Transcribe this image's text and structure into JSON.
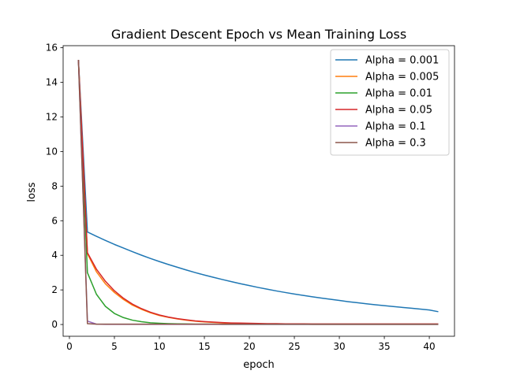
{
  "chart_data": {
    "type": "line",
    "title": "Gradient Descent Epoch vs Mean Training Loss",
    "xlabel": "epoch",
    "ylabel": "loss",
    "xlim": [
      -0.7,
      42.8
    ],
    "ylim": [
      -0.68,
      16.12
    ],
    "xticks": [
      {
        "value": 0,
        "label": "0"
      },
      {
        "value": 5,
        "label": "5"
      },
      {
        "value": 10,
        "label": "10"
      },
      {
        "value": 15,
        "label": "15"
      },
      {
        "value": 20,
        "label": "20"
      },
      {
        "value": 25,
        "label": "25"
      },
      {
        "value": 30,
        "label": "30"
      },
      {
        "value": 35,
        "label": "35"
      },
      {
        "value": 40,
        "label": "40"
      }
    ],
    "yticks": [
      {
        "value": 0,
        "label": "0"
      },
      {
        "value": 2,
        "label": "2"
      },
      {
        "value": 4,
        "label": "4"
      },
      {
        "value": 6,
        "label": "6"
      },
      {
        "value": 8,
        "label": "8"
      },
      {
        "value": 10,
        "label": "10"
      },
      {
        "value": 12,
        "label": "12"
      },
      {
        "value": 14,
        "label": "14"
      },
      {
        "value": 16,
        "label": "16"
      }
    ],
    "grid": false,
    "legend_position": "top-right",
    "x": [
      1,
      2,
      3,
      4,
      5,
      6,
      7,
      8,
      9,
      10,
      11,
      12,
      13,
      14,
      15,
      16,
      17,
      18,
      19,
      20,
      21,
      22,
      23,
      24,
      25,
      26,
      27,
      28,
      29,
      30,
      31,
      32,
      33,
      34,
      35,
      36,
      37,
      38,
      39,
      40,
      41
    ],
    "series": [
      {
        "name": "Alpha = 0.001",
        "color": "#1f77b4",
        "values": [
          15.3,
          5.35,
          5.1,
          4.86,
          4.63,
          4.42,
          4.21,
          4.01,
          3.82,
          3.64,
          3.47,
          3.31,
          3.15,
          3.0,
          2.86,
          2.73,
          2.6,
          2.48,
          2.36,
          2.25,
          2.14,
          2.04,
          1.94,
          1.85,
          1.76,
          1.68,
          1.6,
          1.53,
          1.46,
          1.39,
          1.32,
          1.26,
          1.2,
          1.14,
          1.09,
          1.04,
          0.99,
          0.94,
          0.89,
          0.84,
          0.74
        ]
      },
      {
        "name": "Alpha = 0.005",
        "color": "#ff7f0e",
        "values": [
          15.3,
          4.1,
          3.05,
          2.35,
          1.85,
          1.45,
          1.12,
          0.88,
          0.68,
          0.52,
          0.41,
          0.32,
          0.25,
          0.19,
          0.15,
          0.12,
          0.09,
          0.07,
          0.06,
          0.05,
          0.04,
          0.03,
          0.03,
          0.02,
          0.02,
          0.02,
          0.01,
          0.01,
          0.01,
          0.01,
          0.01,
          0.01,
          0.01,
          0.01,
          0.01,
          0.01,
          0.01,
          0.01,
          0.01,
          0.01,
          0.01
        ]
      },
      {
        "name": "Alpha = 0.01",
        "color": "#2ca02c",
        "values": [
          15.3,
          3.0,
          1.75,
          1.05,
          0.64,
          0.4,
          0.25,
          0.16,
          0.1,
          0.07,
          0.05,
          0.04,
          0.03,
          0.02,
          0.02,
          0.02,
          0.01,
          0.01,
          0.01,
          0.01,
          0.01,
          0.01,
          0.01,
          0.01,
          0.01,
          0.01,
          0.01,
          0.01,
          0.01,
          0.01,
          0.01,
          0.01,
          0.01,
          0.01,
          0.01,
          0.01,
          0.01,
          0.01,
          0.01,
          0.01,
          0.01
        ]
      },
      {
        "name": "Alpha = 0.05",
        "color": "#d62728",
        "values": [
          15.3,
          4.15,
          3.2,
          2.5,
          1.95,
          1.52,
          1.18,
          0.92,
          0.71,
          0.55,
          0.43,
          0.34,
          0.27,
          0.21,
          0.17,
          0.14,
          0.11,
          0.09,
          0.08,
          0.07,
          0.06,
          0.05,
          0.05,
          0.04,
          0.04,
          0.04,
          0.03,
          0.03,
          0.03,
          0.03,
          0.03,
          0.03,
          0.03,
          0.03,
          0.03,
          0.03,
          0.03,
          0.03,
          0.03,
          0.03,
          0.03
        ]
      },
      {
        "name": "Alpha = 0.1",
        "color": "#9467bd",
        "values": [
          15.3,
          0.2,
          0.02,
          0.01,
          0.01,
          0.01,
          0.01,
          0.01,
          0.01,
          0.01,
          0.01,
          0.01,
          0.01,
          0.01,
          0.01,
          0.01,
          0.01,
          0.01,
          0.01,
          0.01,
          0.01,
          0.01,
          0.01,
          0.01,
          0.01,
          0.01,
          0.01,
          0.01,
          0.01,
          0.01,
          0.01,
          0.01,
          0.01,
          0.01,
          0.01,
          0.01,
          0.01,
          0.01,
          0.01,
          0.01,
          0.01
        ]
      },
      {
        "name": "Alpha = 0.3",
        "color": "#8c564b",
        "values": [
          15.3,
          0.05,
          0.02,
          0.02,
          0.02,
          0.02,
          0.02,
          0.02,
          0.02,
          0.02,
          0.02,
          0.02,
          0.02,
          0.02,
          0.02,
          0.02,
          0.02,
          0.02,
          0.02,
          0.02,
          0.02,
          0.02,
          0.02,
          0.02,
          0.02,
          0.02,
          0.02,
          0.02,
          0.02,
          0.02,
          0.02,
          0.02,
          0.02,
          0.02,
          0.02,
          0.02,
          0.02,
          0.02,
          0.02,
          0.02,
          0.02
        ]
      }
    ]
  }
}
